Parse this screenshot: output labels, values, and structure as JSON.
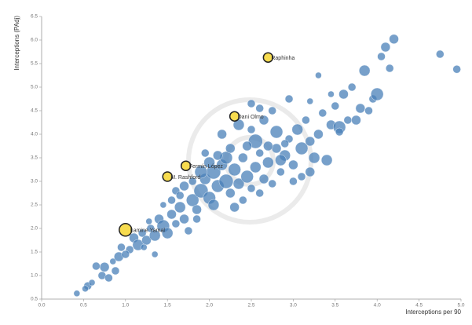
{
  "chart_data": {
    "type": "scatter",
    "x_label": "Interceptions per 90",
    "y_label": "Interceptions (PAdj)",
    "xlim": [
      0,
      5
    ],
    "ylim": [
      0.5,
      6.5
    ],
    "xticks": [
      {
        "value": 0,
        "label": "0.0"
      },
      0.5,
      {
        "value": 1,
        "label": "1.0"
      },
      1.5,
      {
        "value": 2,
        "label": "2.0"
      },
      2.5,
      {
        "value": 3,
        "label": "3.0"
      },
      3.5,
      {
        "value": 4,
        "label": "4.0"
      },
      4.5,
      {
        "value": 5,
        "label": "5.0"
      }
    ],
    "yticks": [
      0.5,
      {
        "value": 1,
        "label": "1.0"
      },
      1.5,
      {
        "value": 2,
        "label": "2.0"
      },
      2.5,
      {
        "value": 3,
        "label": "3.0"
      },
      3.5,
      {
        "value": 4,
        "label": "4.0"
      },
      4.5,
      {
        "value": 5,
        "label": "5.0"
      },
      5.5,
      {
        "value": 6,
        "label": "6.0"
      },
      6.5
    ],
    "series": [
      {
        "color": "#4a80b8",
        "x": [
          0.42,
          0.55,
          0.52,
          0.6,
          0.72,
          0.75,
          0.8,
          0.85,
          0.88,
          0.92,
          0.95,
          1.05,
          1.1,
          1.15,
          1.2,
          1.25,
          1.3,
          1.35,
          1.4,
          1.45,
          1.5,
          1.55,
          1.6,
          1.65,
          1.7,
          1.75,
          1.8,
          1.55,
          1.6,
          1.45,
          1.28,
          1.22,
          1.0,
          0.65,
          1.85,
          1.9,
          1.95,
          2.0,
          2.05,
          2.1,
          2.15,
          2.2,
          2.25,
          2.3,
          2.35,
          2.4,
          2.45,
          2.5,
          2.55,
          2.6,
          2.65,
          2.7,
          2.75,
          2.8,
          2.85,
          2.9,
          2.95,
          3.0,
          3.05,
          3.1,
          3.15,
          3.2,
          3.25,
          3.3,
          3.35,
          3.4,
          3.45,
          3.5,
          3.55,
          3.6,
          3.65,
          3.7,
          3.8,
          3.85,
          3.95,
          4.0,
          4.05,
          4.1,
          4.2,
          4.15,
          4.75,
          4.95,
          3.9,
          3.75,
          3.3,
          3.45,
          2.95,
          3.2,
          2.6,
          2.5,
          2.65,
          2.35,
          2.5,
          2.8,
          2.55,
          2.45,
          2.2,
          1.9,
          2.1,
          2.0,
          1.8,
          1.7,
          1.85,
          1.65,
          2.4,
          2.3,
          2.6,
          3.0,
          3.2,
          2.85,
          3.1,
          2.9,
          2.7,
          2.25,
          2.15,
          1.95,
          2.05,
          2.75,
          3.55,
          1.35
        ],
        "y": [
          0.62,
          0.78,
          0.72,
          0.85,
          1.0,
          1.18,
          0.95,
          1.3,
          1.1,
          1.4,
          1.6,
          1.55,
          1.8,
          1.65,
          1.9,
          1.75,
          2.0,
          1.85,
          2.2,
          2.05,
          1.9,
          2.3,
          2.1,
          2.45,
          2.2,
          1.95,
          2.6,
          2.6,
          2.8,
          2.5,
          2.15,
          1.6,
          1.45,
          1.2,
          2.4,
          2.8,
          3.05,
          2.65,
          3.2,
          2.9,
          3.35,
          3.0,
          2.75,
          3.25,
          2.95,
          3.5,
          3.1,
          2.85,
          3.3,
          3.6,
          3.05,
          3.4,
          2.95,
          3.7,
          3.2,
          3.55,
          3.9,
          3.35,
          4.1,
          3.7,
          4.3,
          3.85,
          3.5,
          4.0,
          4.45,
          3.45,
          4.2,
          4.6,
          4.15,
          4.85,
          4.3,
          5.0,
          4.55,
          5.35,
          4.75,
          4.85,
          5.65,
          5.85,
          6.02,
          5.4,
          5.7,
          5.38,
          4.5,
          4.3,
          5.25,
          4.85,
          4.75,
          4.7,
          4.55,
          4.65,
          4.3,
          4.2,
          4.1,
          4.05,
          3.85,
          3.75,
          3.5,
          3.2,
          3.55,
          3.4,
          3.0,
          2.9,
          2.2,
          2.7,
          2.6,
          2.45,
          2.75,
          3.0,
          3.2,
          3.45,
          3.1,
          3.8,
          3.75,
          3.7,
          4.0,
          3.6,
          2.5,
          4.5,
          4.05,
          1.45
        ],
        "sizes": [
          4,
          5,
          4,
          4,
          5,
          6,
          5,
          4,
          5,
          6,
          5,
          5,
          6,
          7,
          5,
          6,
          5,
          7,
          6,
          8,
          7,
          6,
          5,
          7,
          6,
          5,
          8,
          5,
          5,
          4,
          4,
          4,
          5,
          5,
          6,
          9,
          7,
          8,
          9,
          8,
          7,
          9,
          6,
          8,
          7,
          6,
          8,
          5,
          7,
          5,
          6,
          7,
          5,
          6,
          5,
          7,
          5,
          6,
          7,
          8,
          5,
          6,
          7,
          6,
          5,
          7,
          6,
          5,
          8,
          6,
          5,
          5,
          6,
          7,
          5,
          8,
          5,
          6,
          6,
          5,
          5,
          5,
          5,
          6,
          4,
          4,
          5,
          4,
          5,
          5,
          6,
          7,
          5,
          8,
          9,
          6,
          8,
          8,
          6,
          7,
          5,
          6,
          5,
          5,
          5,
          6,
          5,
          5,
          6,
          7,
          5,
          5,
          6,
          6,
          6,
          5,
          7,
          5,
          5,
          4
        ]
      },
      {
        "color": "#f7dc4f",
        "x": [
          2.7,
          2.3,
          1.72,
          1.5,
          1.0
        ],
        "y": [
          5.63,
          4.38,
          3.33,
          3.1,
          1.97
        ],
        "sizes": [
          6,
          6,
          6,
          6,
          8
        ],
        "labels": [
          "Raphinha",
          "Dani Olmo",
          "Fermín López",
          "M. Rashford",
          "Lamine Yamal"
        ]
      }
    ]
  }
}
